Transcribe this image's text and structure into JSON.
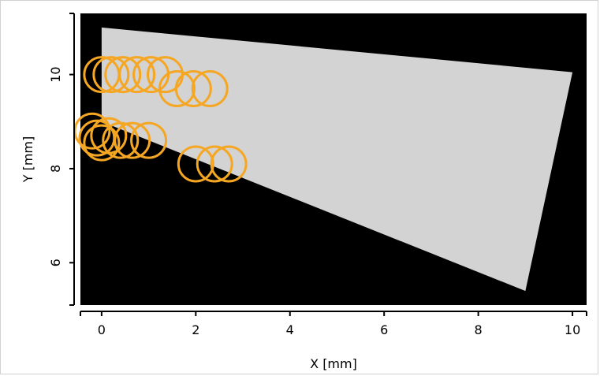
{
  "chart_data": {
    "type": "scatter",
    "title": "",
    "xlabel": "X [mm]",
    "ylabel": "Y [mm]",
    "xlim": [
      -0.45,
      10.3
    ],
    "ylim": [
      5.1,
      11.3
    ],
    "xticks": [
      0,
      2,
      4,
      6,
      8,
      10
    ],
    "yticks": [
      6,
      8,
      10
    ],
    "x_tick_labels": [
      "0",
      "2",
      "4",
      "6",
      "8",
      "10"
    ],
    "y_tick_labels": [
      "6",
      "8",
      "10"
    ],
    "grid": false,
    "legend": "none",
    "plot_background": "#000000",
    "region": {
      "fill": "#d3d3d3",
      "polygon": [
        [
          0.0,
          11.0
        ],
        [
          10.0,
          10.05
        ],
        [
          9.0,
          5.4
        ],
        [
          0.0,
          9.0
        ]
      ]
    },
    "series": [
      {
        "marker": "open-circle",
        "color": "#f5a623",
        "points": [
          {
            "x": 0.0,
            "y": 10.0
          },
          {
            "x": 0.2,
            "y": 10.0
          },
          {
            "x": 0.45,
            "y": 10.0
          },
          {
            "x": 0.75,
            "y": 10.0
          },
          {
            "x": 1.05,
            "y": 10.0
          },
          {
            "x": 1.35,
            "y": 10.0
          },
          {
            "x": 1.6,
            "y": 9.7
          },
          {
            "x": 1.95,
            "y": 9.7
          },
          {
            "x": 2.3,
            "y": 9.7
          },
          {
            "x": -0.2,
            "y": 8.8
          },
          {
            "x": -0.1,
            "y": 8.65
          },
          {
            "x": 0.0,
            "y": 8.55
          },
          {
            "x": 0.15,
            "y": 8.7
          },
          {
            "x": 0.4,
            "y": 8.6
          },
          {
            "x": 0.65,
            "y": 8.6
          },
          {
            "x": 1.0,
            "y": 8.6
          },
          {
            "x": 2.0,
            "y": 8.1
          },
          {
            "x": 2.4,
            "y": 8.1
          },
          {
            "x": 2.7,
            "y": 8.1
          }
        ]
      }
    ]
  }
}
